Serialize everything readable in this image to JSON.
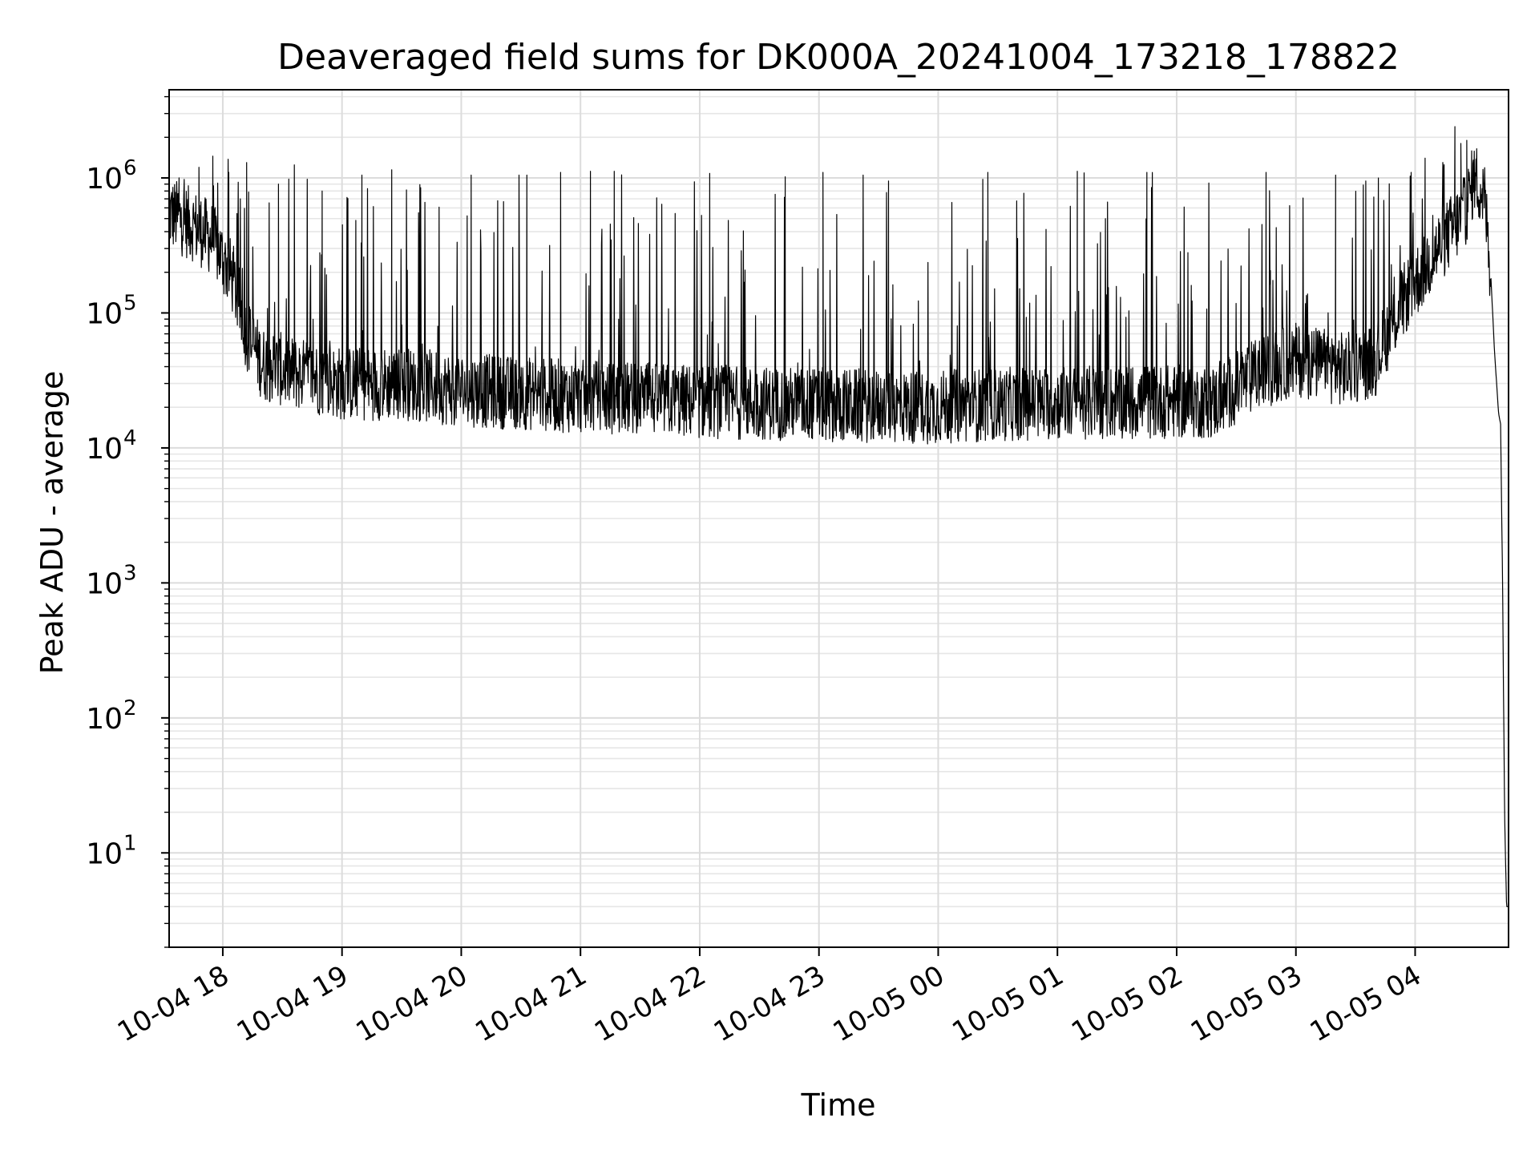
{
  "chart_data": {
    "type": "line",
    "title": "Deaveraged field sums for DK000A_20241004_173218_178822",
    "xlabel": "Time",
    "ylabel": "Peak ADU - average",
    "y_scale": "log",
    "ylim": [
      2.0,
      4500000
    ],
    "xlim": [
      "2024-10-04 17:33",
      "2024-10-05 04:47"
    ],
    "grid": true,
    "grid_minor": true,
    "line_color": "#000000",
    "x_ticks": [
      {
        "value": "2024-10-04 18:00",
        "label": "10-04 18"
      },
      {
        "value": "2024-10-04 19:00",
        "label": "10-04 19"
      },
      {
        "value": "2024-10-04 20:00",
        "label": "10-04 20"
      },
      {
        "value": "2024-10-04 21:00",
        "label": "10-04 21"
      },
      {
        "value": "2024-10-04 22:00",
        "label": "10-04 22"
      },
      {
        "value": "2024-10-04 23:00",
        "label": "10-04 23"
      },
      {
        "value": "2024-10-05 00:00",
        "label": "10-05 00"
      },
      {
        "value": "2024-10-05 01:00",
        "label": "10-05 01"
      },
      {
        "value": "2024-10-05 02:00",
        "label": "10-05 02"
      },
      {
        "value": "2024-10-05 03:00",
        "label": "10-05 03"
      },
      {
        "value": "2024-10-05 04:00",
        "label": "10-05 04"
      }
    ],
    "y_ticks": [
      {
        "value": 10,
        "base": "10",
        "exp": "1"
      },
      {
        "value": 100,
        "base": "10",
        "exp": "2"
      },
      {
        "value": 1000,
        "base": "10",
        "exp": "3"
      },
      {
        "value": 10000,
        "base": "10",
        "exp": "4"
      },
      {
        "value": 100000,
        "base": "10",
        "exp": "5"
      },
      {
        "value": 1000000,
        "base": "10",
        "exp": "6"
      }
    ],
    "series": [
      {
        "baseline": {
          "x": [
            "2024-10-04 17:33",
            "2024-10-04 17:45",
            "2024-10-04 17:55",
            "2024-10-04 18:05",
            "2024-10-04 18:12",
            "2024-10-04 18:20",
            "2024-10-04 18:35",
            "2024-10-04 19:00",
            "2024-10-04 19:30",
            "2024-10-04 20:00",
            "2024-10-04 21:00",
            "2024-10-04 22:00",
            "2024-10-04 23:00",
            "2024-10-04 23:50",
            "2024-10-05 00:30",
            "2024-10-05 01:30",
            "2024-10-05 02:20",
            "2024-10-05 02:40",
            "2024-10-05 03:00",
            "2024-10-05 03:25",
            "2024-10-05 03:40",
            "2024-10-05 03:55",
            "2024-10-05 04:10",
            "2024-10-05 04:25",
            "2024-10-05 04:30",
            "2024-10-05 04:35",
            "2024-10-05 04:38",
            "2024-10-05 04:40",
            "2024-10-05 04:42",
            "2024-10-05 04:43",
            "2024-10-05 04:44",
            "2024-10-05 04:45",
            "2024-10-05 04:46",
            "2024-10-05 04:47"
          ],
          "y": [
            550000,
            450000,
            350000,
            180000,
            70000,
            42000,
            36000,
            30000,
            30000,
            27000,
            24000,
            22000,
            21000,
            20000,
            21000,
            22000,
            22000,
            35000,
            45000,
            38000,
            45000,
            130000,
            280000,
            550000,
            1050000,
            700000,
            200000,
            50000,
            18000,
            15000,
            1000,
            20,
            4,
            4
          ]
        },
        "spikes": [
          {
            "x": "2024-10-04 17:38",
            "y": 1000000
          },
          {
            "x": "2024-10-04 17:48",
            "y": 1200000
          },
          {
            "x": "2024-10-04 17:55",
            "y": 1450000
          },
          {
            "x": "2024-10-04 18:03",
            "y": 1100000
          },
          {
            "x": "2024-10-04 18:12",
            "y": 1300000
          },
          {
            "x": "2024-10-04 18:28",
            "y": 900000
          },
          {
            "x": "2024-10-04 18:36",
            "y": 1250000
          },
          {
            "x": "2024-10-04 18:50",
            "y": 800000
          },
          {
            "x": "2024-10-04 19:10",
            "y": 1050000
          },
          {
            "x": "2024-10-04 19:25",
            "y": 1150000
          },
          {
            "x": "2024-10-04 20:05",
            "y": 1050000
          },
          {
            "x": "2024-10-04 20:33",
            "y": 1050000
          },
          {
            "x": "2024-10-04 20:50",
            "y": 1100000
          },
          {
            "x": "2024-10-04 21:05",
            "y": 1120000
          },
          {
            "x": "2024-10-04 21:17",
            "y": 1120000
          },
          {
            "x": "2024-10-04 22:05",
            "y": 1080000
          },
          {
            "x": "2024-10-04 22:43",
            "y": 1020000
          },
          {
            "x": "2024-10-04 23:02",
            "y": 1100000
          },
          {
            "x": "2024-10-04 23:35",
            "y": 950000
          },
          {
            "x": "2024-10-05 00:25",
            "y": 1100000
          },
          {
            "x": "2024-10-05 01:10",
            "y": 1120000
          },
          {
            "x": "2024-10-05 01:45",
            "y": 1100000
          },
          {
            "x": "2024-10-05 02:45",
            "y": 1100000
          },
          {
            "x": "2024-10-05 03:20",
            "y": 1050000
          },
          {
            "x": "2024-10-05 03:58",
            "y": 1100000
          },
          {
            "x": "2024-10-05 04:05",
            "y": 1400000
          },
          {
            "x": "2024-10-05 04:20",
            "y": 2400000
          },
          {
            "x": "2024-10-05 04:23",
            "y": 1800000
          },
          {
            "x": "2024-10-05 04:26",
            "y": 1900000
          }
        ]
      }
    ]
  }
}
